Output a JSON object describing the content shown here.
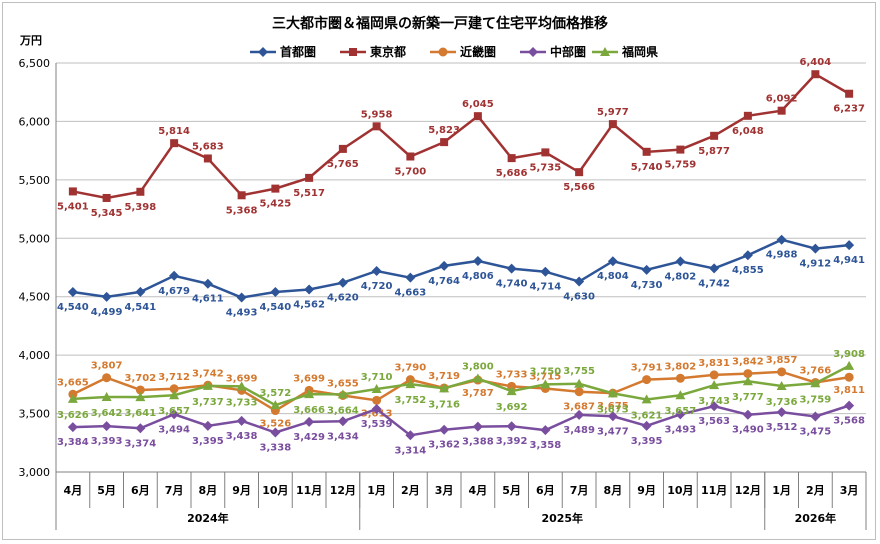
{
  "chart_data": {
    "type": "line",
    "title": "三大都市圏＆福岡県の新築一戸建て住宅平均価格推移",
    "ylabel": "万円",
    "ylim": [
      3000,
      6500
    ],
    "yticks": [
      "3,000",
      "3,500",
      "4,000",
      "4,500",
      "5,000",
      "5,500",
      "6,000",
      "6,500"
    ],
    "ytick_values": [
      3000,
      3500,
      4000,
      4500,
      5000,
      5500,
      6000,
      6500
    ],
    "grid": true,
    "legend_position": "top-center",
    "categories": [
      "4月",
      "5月",
      "6月",
      "7月",
      "8月",
      "9月",
      "10月",
      "11月",
      "12月",
      "1月",
      "2月",
      "3月",
      "4月",
      "5月",
      "6月",
      "7月",
      "8月",
      "9月",
      "10月",
      "11月",
      "12月",
      "1月",
      "2月",
      "3月"
    ],
    "years": [
      {
        "label": "2024年",
        "start": 0,
        "end": 8
      },
      {
        "label": "2025年",
        "start": 9,
        "end": 20
      },
      {
        "label": "2026年",
        "start": 21,
        "end": 23
      }
    ],
    "series": [
      {
        "name": "首都圏",
        "color": "#2e5597",
        "marker": "diamond",
        "label_pos": "below",
        "values": [
          4540,
          4499,
          4541,
          4679,
          4611,
          4493,
          4540,
          4562,
          4620,
          4720,
          4663,
          4764,
          4806,
          4740,
          4714,
          4630,
          4804,
          4730,
          4802,
          4742,
          4855,
          4988,
          4912,
          4941
        ],
        "labels": [
          "4,540",
          "4,499",
          "4,541",
          "4,679",
          "4,611",
          "4,493",
          "4,540",
          "4,562",
          "4,620",
          "4,720",
          "4,663",
          "4,764",
          "4,806",
          "4,740",
          "4,714",
          "4,630",
          "4,804",
          "4,730",
          "4,802",
          "4,742",
          "4,855",
          "4,988",
          "4,912",
          "4,941"
        ]
      },
      {
        "name": "東京都",
        "color": "#a03232",
        "marker": "square",
        "label_pos": "mixed",
        "values": [
          5401,
          5345,
          5398,
          5814,
          5683,
          5368,
          5425,
          5517,
          5765,
          5958,
          5700,
          5823,
          6045,
          5686,
          5735,
          5566,
          5977,
          5740,
          5759,
          5877,
          6048,
          6092,
          6404,
          6237
        ],
        "labels": [
          "5,401",
          "5,345",
          "5,398",
          "5,814",
          "5,683",
          "5,368",
          "5,425",
          "5,517",
          "5,765",
          "5,958",
          "5,700",
          "5,823",
          "6,045",
          "5,686",
          "5,735",
          "5,566",
          "5,977",
          "5,740",
          "5,759",
          "5,877",
          "6,048",
          "6,092",
          "6,404",
          "6,237"
        ]
      },
      {
        "name": "近畿圏",
        "color": "#d47a30",
        "marker": "circle",
        "label_pos": "mixed",
        "values": [
          3665,
          3807,
          3702,
          3712,
          3742,
          3699,
          3526,
          3699,
          3655,
          3613,
          3790,
          3719,
          3787,
          3733,
          3715,
          3687,
          3675,
          3791,
          3802,
          3831,
          3842,
          3857,
          3766,
          3811
        ],
        "labels": [
          "3,665",
          "3,807",
          "3,702",
          "3,712",
          "3,742",
          "3,699",
          "3,526",
          "3,699",
          "3,655",
          "3,613",
          "3,790",
          "3,719",
          "3,787",
          "3,733",
          "3,715",
          "3,687",
          "3,675",
          "3,791",
          "3,802",
          "3,831",
          "3,842",
          "3,857",
          "3,766",
          "3,811"
        ]
      },
      {
        "name": "中部圏",
        "color": "#7a4e9e",
        "marker": "diamond",
        "label_pos": "below",
        "values": [
          3384,
          3393,
          3374,
          3494,
          3395,
          3438,
          3338,
          3429,
          3434,
          3539,
          3314,
          3362,
          3388,
          3392,
          3358,
          3489,
          3477,
          3395,
          3493,
          3563,
          3490,
          3512,
          3475,
          3568
        ],
        "labels": [
          "3,384",
          "3,393",
          "3,374",
          "3,494",
          "3,395",
          "3,438",
          "3,338",
          "3,429",
          "3,434",
          "3,539",
          "3,314",
          "3,362",
          "3,388",
          "3,392",
          "3,358",
          "3,489",
          "3,477",
          "3,395",
          "3,493",
          "3,563",
          "3,490",
          "3,512",
          "3,475",
          "3,568"
        ]
      },
      {
        "name": "福岡県",
        "color": "#7aa83c",
        "marker": "triangle",
        "label_pos": "mixed",
        "values": [
          3626,
          3642,
          3641,
          3657,
          3737,
          3733,
          3572,
          3666,
          3664,
          3710,
          3752,
          3716,
          3800,
          3692,
          3750,
          3755,
          3673,
          3621,
          3657,
          3743,
          3777,
          3736,
          3759,
          3908
        ],
        "labels": [
          "3,626",
          "3,642",
          "3,641",
          "3,657",
          "3,737",
          "3,733",
          "3,572",
          "3,666",
          "3,664",
          "3,710",
          "3,752",
          "3,716",
          "3,800",
          "3,692",
          "3,750",
          "3,755",
          "3,673",
          "3,621",
          "3,657",
          "3,743",
          "3,777",
          "3,736",
          "3,759",
          "3,908"
        ]
      }
    ]
  }
}
